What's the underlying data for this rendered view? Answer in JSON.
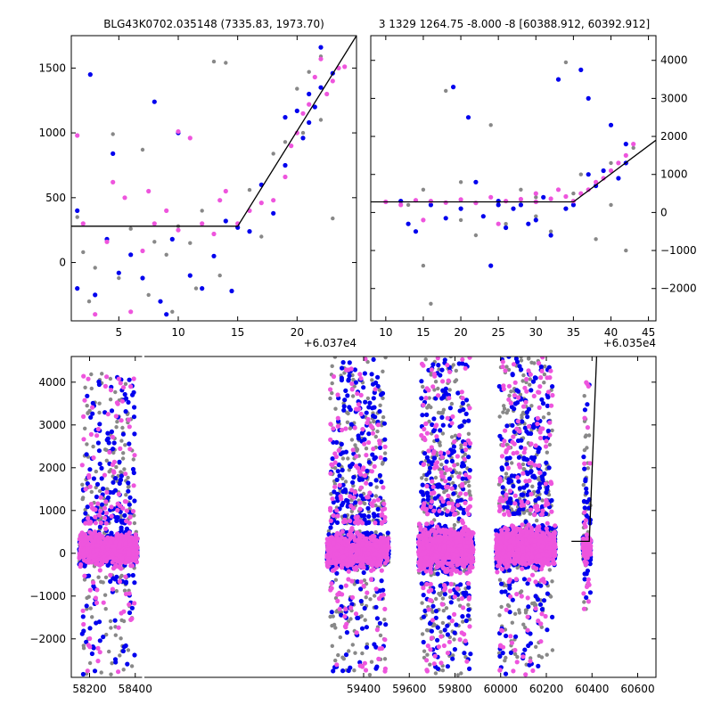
{
  "chart_data": [
    {
      "type": "scatter",
      "panel": "top-left",
      "title": "BLG43K0702.035148 (7335.83, 1973.70)",
      "x_offset_label": "+6.037e4",
      "xlim": [
        1,
        25
      ],
      "ylim": [
        -450,
        1750
      ],
      "yaxis_side": "left",
      "xticks": [
        5,
        10,
        15,
        20
      ],
      "yticks": [
        0,
        500,
        1000,
        1500
      ],
      "model_line": [
        [
          1,
          280
        ],
        [
          15,
          280
        ],
        [
          25,
          1750
        ]
      ],
      "series": [
        {
          "color": "#888888",
          "size": 2.2,
          "points": [
            [
              1.5,
              350
            ],
            [
              2,
              80
            ],
            [
              3,
              -40
            ],
            [
              4,
              180
            ],
            [
              4.5,
              990
            ],
            [
              6,
              260
            ],
            [
              7,
              870
            ],
            [
              8,
              160
            ],
            [
              9,
              60
            ],
            [
              10,
              280
            ],
            [
              11,
              150
            ],
            [
              12,
              400
            ],
            [
              13,
              1550
            ],
            [
              14,
              1540
            ],
            [
              15,
              280
            ],
            [
              16,
              560
            ],
            [
              17,
              200
            ],
            [
              18,
              840
            ],
            [
              19,
              930
            ],
            [
              20,
              1340
            ],
            [
              21,
              1470
            ],
            [
              22,
              1590
            ],
            [
              23,
              340
            ],
            [
              2.5,
              -300
            ],
            [
              5,
              -120
            ],
            [
              7.5,
              -250
            ],
            [
              9.5,
              -380
            ],
            [
              11.5,
              -200
            ],
            [
              13.5,
              -100
            ],
            [
              20.5,
              1000
            ],
            [
              22,
              1100
            ]
          ]
        },
        {
          "color": "#0000ee",
          "size": 2.6,
          "points": [
            [
              1.5,
              400
            ],
            [
              1.5,
              -200
            ],
            [
              2.6,
              1450
            ],
            [
              3,
              -250
            ],
            [
              4,
              180
            ],
            [
              4.5,
              840
            ],
            [
              5,
              -80
            ],
            [
              6,
              60
            ],
            [
              7,
              -120
            ],
            [
              8,
              1240
            ],
            [
              8.5,
              -300
            ],
            [
              9,
              -400
            ],
            [
              9.5,
              180
            ],
            [
              10,
              1000
            ],
            [
              11,
              -100
            ],
            [
              12,
              -200
            ],
            [
              13,
              50
            ],
            [
              14,
              320
            ],
            [
              14.5,
              -220
            ],
            [
              15,
              270
            ],
            [
              16,
              240
            ],
            [
              17,
              600
            ],
            [
              18,
              380
            ],
            [
              19,
              750
            ],
            [
              19,
              1120
            ],
            [
              20,
              1170
            ],
            [
              20.5,
              960
            ],
            [
              21,
              1080
            ],
            [
              21,
              1300
            ],
            [
              21.5,
              1200
            ],
            [
              22,
              1660
            ],
            [
              22,
              1350
            ],
            [
              23,
              1460
            ]
          ]
        },
        {
          "color": "#ee55dd",
          "size": 2.6,
          "points": [
            [
              1.5,
              980
            ],
            [
              2,
              300
            ],
            [
              3,
              -400
            ],
            [
              4,
              160
            ],
            [
              4.5,
              620
            ],
            [
              5.5,
              500
            ],
            [
              6,
              -380
            ],
            [
              7,
              90
            ],
            [
              7.5,
              550
            ],
            [
              8,
              300
            ],
            [
              9,
              400
            ],
            [
              10,
              250
            ],
            [
              10,
              1010
            ],
            [
              11,
              960
            ],
            [
              12,
              300
            ],
            [
              13,
              220
            ],
            [
              13.5,
              480
            ],
            [
              14,
              550
            ],
            [
              15,
              300
            ],
            [
              16,
              400
            ],
            [
              17,
              460
            ],
            [
              18,
              480
            ],
            [
              19,
              660
            ],
            [
              19.5,
              900
            ],
            [
              20,
              1000
            ],
            [
              20.5,
              1150
            ],
            [
              21,
              1220
            ],
            [
              21.5,
              1430
            ],
            [
              22,
              1570
            ],
            [
              22.5,
              1300
            ],
            [
              23,
              1400
            ],
            [
              23.5,
              1500
            ],
            [
              24,
              1510
            ]
          ]
        }
      ]
    },
    {
      "type": "scatter",
      "panel": "top-right",
      "title": "3 1329 1264.75 -8.000 -8 [60388.912, 60392.912]",
      "x_offset_label": "+6.035e4",
      "xlim": [
        8,
        46
      ],
      "ylim": [
        -2850,
        4650
      ],
      "yaxis_side": "right",
      "xticks": [
        10,
        15,
        20,
        25,
        30,
        35,
        40,
        45
      ],
      "yticks": [
        -2000,
        -1000,
        0,
        1000,
        2000,
        3000,
        4000
      ],
      "model_line": [
        [
          8,
          280
        ],
        [
          35,
          280
        ],
        [
          46,
          1900
        ]
      ],
      "series": [
        {
          "color": "#888888",
          "size": 2.2,
          "points": [
            [
              13,
              200
            ],
            [
              15,
              -1400
            ],
            [
              16,
              -2400
            ],
            [
              18,
              3200
            ],
            [
              20,
              800
            ],
            [
              22,
              -600
            ],
            [
              24,
              2300
            ],
            [
              26,
              -300
            ],
            [
              28,
              600
            ],
            [
              30,
              400
            ],
            [
              32,
              -500
            ],
            [
              34,
              3950
            ],
            [
              36,
              1000
            ],
            [
              38,
              -700
            ],
            [
              40,
              200
            ],
            [
              42,
              -1000
            ],
            [
              43,
              1700
            ],
            [
              15,
              600
            ],
            [
              20,
              -200
            ],
            [
              25,
              300
            ],
            [
              30,
              -100
            ],
            [
              35,
              500
            ],
            [
              40,
              1300
            ]
          ]
        },
        {
          "color": "#0000ee",
          "size": 2.6,
          "points": [
            [
              12,
              300
            ],
            [
              13,
              -300
            ],
            [
              14,
              -500
            ],
            [
              16,
              200
            ],
            [
              18,
              -150
            ],
            [
              19,
              3300
            ],
            [
              21,
              2500
            ],
            [
              22,
              800
            ],
            [
              23,
              -100
            ],
            [
              24,
              -1400
            ],
            [
              25,
              300
            ],
            [
              26,
              -400
            ],
            [
              27,
              100
            ],
            [
              28,
              200
            ],
            [
              29,
              -300
            ],
            [
              30,
              -200
            ],
            [
              31,
              400
            ],
            [
              32,
              -600
            ],
            [
              33,
              3500
            ],
            [
              34,
              100
            ],
            [
              36,
              3750
            ],
            [
              37,
              1000
            ],
            [
              38,
              700
            ],
            [
              39,
              1100
            ],
            [
              40,
              2300
            ],
            [
              41,
              900
            ],
            [
              42,
              1300
            ],
            [
              42,
              1800
            ],
            [
              37,
              3000
            ],
            [
              35,
              200
            ],
            [
              25,
              200
            ],
            [
              20,
              100
            ]
          ]
        },
        {
          "color": "#ee55dd",
          "size": 2.6,
          "points": [
            [
              10,
              280
            ],
            [
              12,
              200
            ],
            [
              14,
              320
            ],
            [
              16,
              300
            ],
            [
              18,
              260
            ],
            [
              20,
              340
            ],
            [
              22,
              250
            ],
            [
              24,
              400
            ],
            [
              26,
              300
            ],
            [
              28,
              350
            ],
            [
              30,
              280
            ],
            [
              32,
              360
            ],
            [
              34,
              420
            ],
            [
              35,
              300
            ],
            [
              36,
              500
            ],
            [
              37,
              600
            ],
            [
              38,
              800
            ],
            [
              39,
              900
            ],
            [
              40,
              1100
            ],
            [
              41,
              1300
            ],
            [
              42,
              1500
            ],
            [
              43,
              1800
            ],
            [
              15,
              -200
            ],
            [
              25,
              -300
            ],
            [
              30,
              500
            ],
            [
              33,
              600
            ]
          ]
        }
      ]
    },
    {
      "type": "scatter",
      "panel": "bottom",
      "title": "",
      "xlim": [
        58120,
        60680
      ],
      "ylim": [
        -2900,
        4600
      ],
      "yaxis_side": "left",
      "xticks": [
        58200,
        58400,
        59400,
        59600,
        59800,
        60000,
        60200,
        60400,
        60600
      ],
      "yticks": [
        -2000,
        -1000,
        0,
        1000,
        2000,
        3000,
        4000
      ],
      "x_break": [
        58430,
        58440
      ],
      "model_line": [
        [
          60310,
          280
        ],
        [
          60388,
          280
        ],
        [
          60420,
          4600
        ]
      ],
      "clusters": [
        {
          "x_range": [
            58155,
            58410
          ],
          "core_range": [
            -500,
            700
          ],
          "spread_range": [
            -2850,
            4200
          ],
          "n_core": 600,
          "n_spread": 160
        },
        {
          "x_range": [
            59240,
            59510
          ],
          "core_range": [
            -600,
            700
          ],
          "spread_range": [
            -2850,
            4600
          ],
          "n_core": 650,
          "n_spread": 220
        },
        {
          "x_range": [
            59640,
            59880
          ],
          "core_range": [
            -700,
            900
          ],
          "spread_range": [
            -2850,
            4600
          ],
          "n_core": 650,
          "n_spread": 220
        },
        {
          "x_range": [
            59980,
            60240
          ],
          "core_range": [
            -600,
            900
          ],
          "spread_range": [
            -2850,
            4600
          ],
          "n_core": 650,
          "n_spread": 220
        },
        {
          "x_range": [
            60360,
            60395
          ],
          "core_range": [
            -400,
            600
          ],
          "spread_range": [
            -1500,
            4000
          ],
          "n_core": 90,
          "n_spread": 25
        }
      ],
      "series": [
        {
          "color": "#888888",
          "size": 2.2
        },
        {
          "color": "#0000ee",
          "size": 2.6
        },
        {
          "color": "#ee55dd",
          "size": 2.6
        }
      ]
    }
  ]
}
